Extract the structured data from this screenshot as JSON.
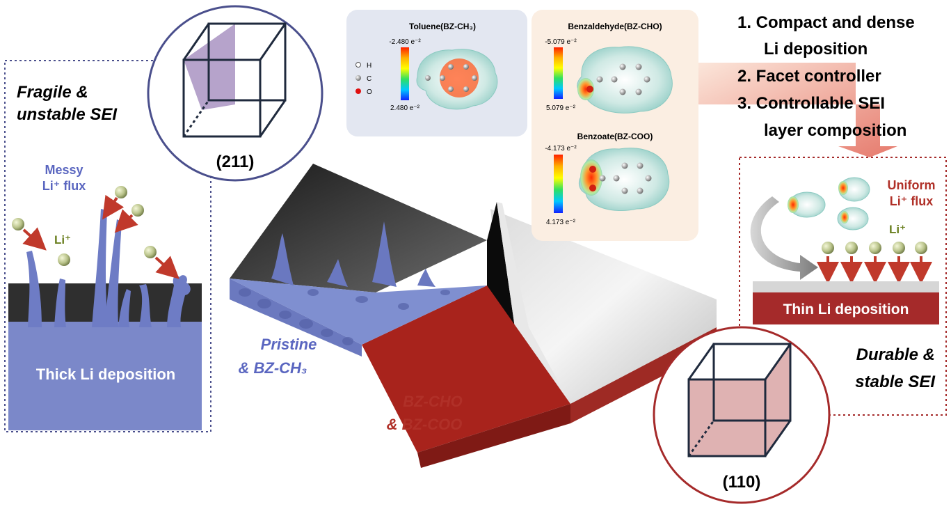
{
  "left_panel": {
    "title_line1": "Fragile &",
    "title_line2": "unstable SEI",
    "flux_line1": "Messy",
    "flux_line2": "Li⁺ flux",
    "li_label": "Li⁺",
    "deposition": "Thick Li deposition",
    "facet": "(211)"
  },
  "center": {
    "pristine_line1": "Pristine",
    "pristine_line2": "& BZ-CH₃",
    "bz_line1": "BZ-CHO",
    "bz_line2": "& BZ-COO"
  },
  "toluene": {
    "title": "Toluene(BZ-CH₃)",
    "max": "-2.480 e⁻²",
    "min": "2.480 e⁻²",
    "legend": [
      "H",
      "C",
      "O"
    ]
  },
  "benzaldehyde": {
    "title": "Benzaldehyde(BZ-CHO)",
    "max": "-5.079 e⁻²",
    "min": "5.079 e⁻²"
  },
  "benzoate": {
    "title": "Benzoate(BZ-COO)",
    "max": "-4.173 e⁻²",
    "min": "4.173 e⁻²"
  },
  "benefits": [
    "1. Compact and dense",
    "Li deposition",
    "2. Facet controller",
    "3. Controllable SEI",
    "layer composition"
  ],
  "right_panel": {
    "flux_line1": "Uniform",
    "flux_line2": "Li⁺ flux",
    "li_label": "Li⁺",
    "deposition": "Thin Li deposition",
    "title_line1": "Durable &",
    "title_line2": "stable SEI",
    "facet": "(110)"
  },
  "colors": {
    "blue": "#7b88c9",
    "red": "#b03028",
    "dark_red": "#a52a2a",
    "navy": "#4a4f8c"
  }
}
